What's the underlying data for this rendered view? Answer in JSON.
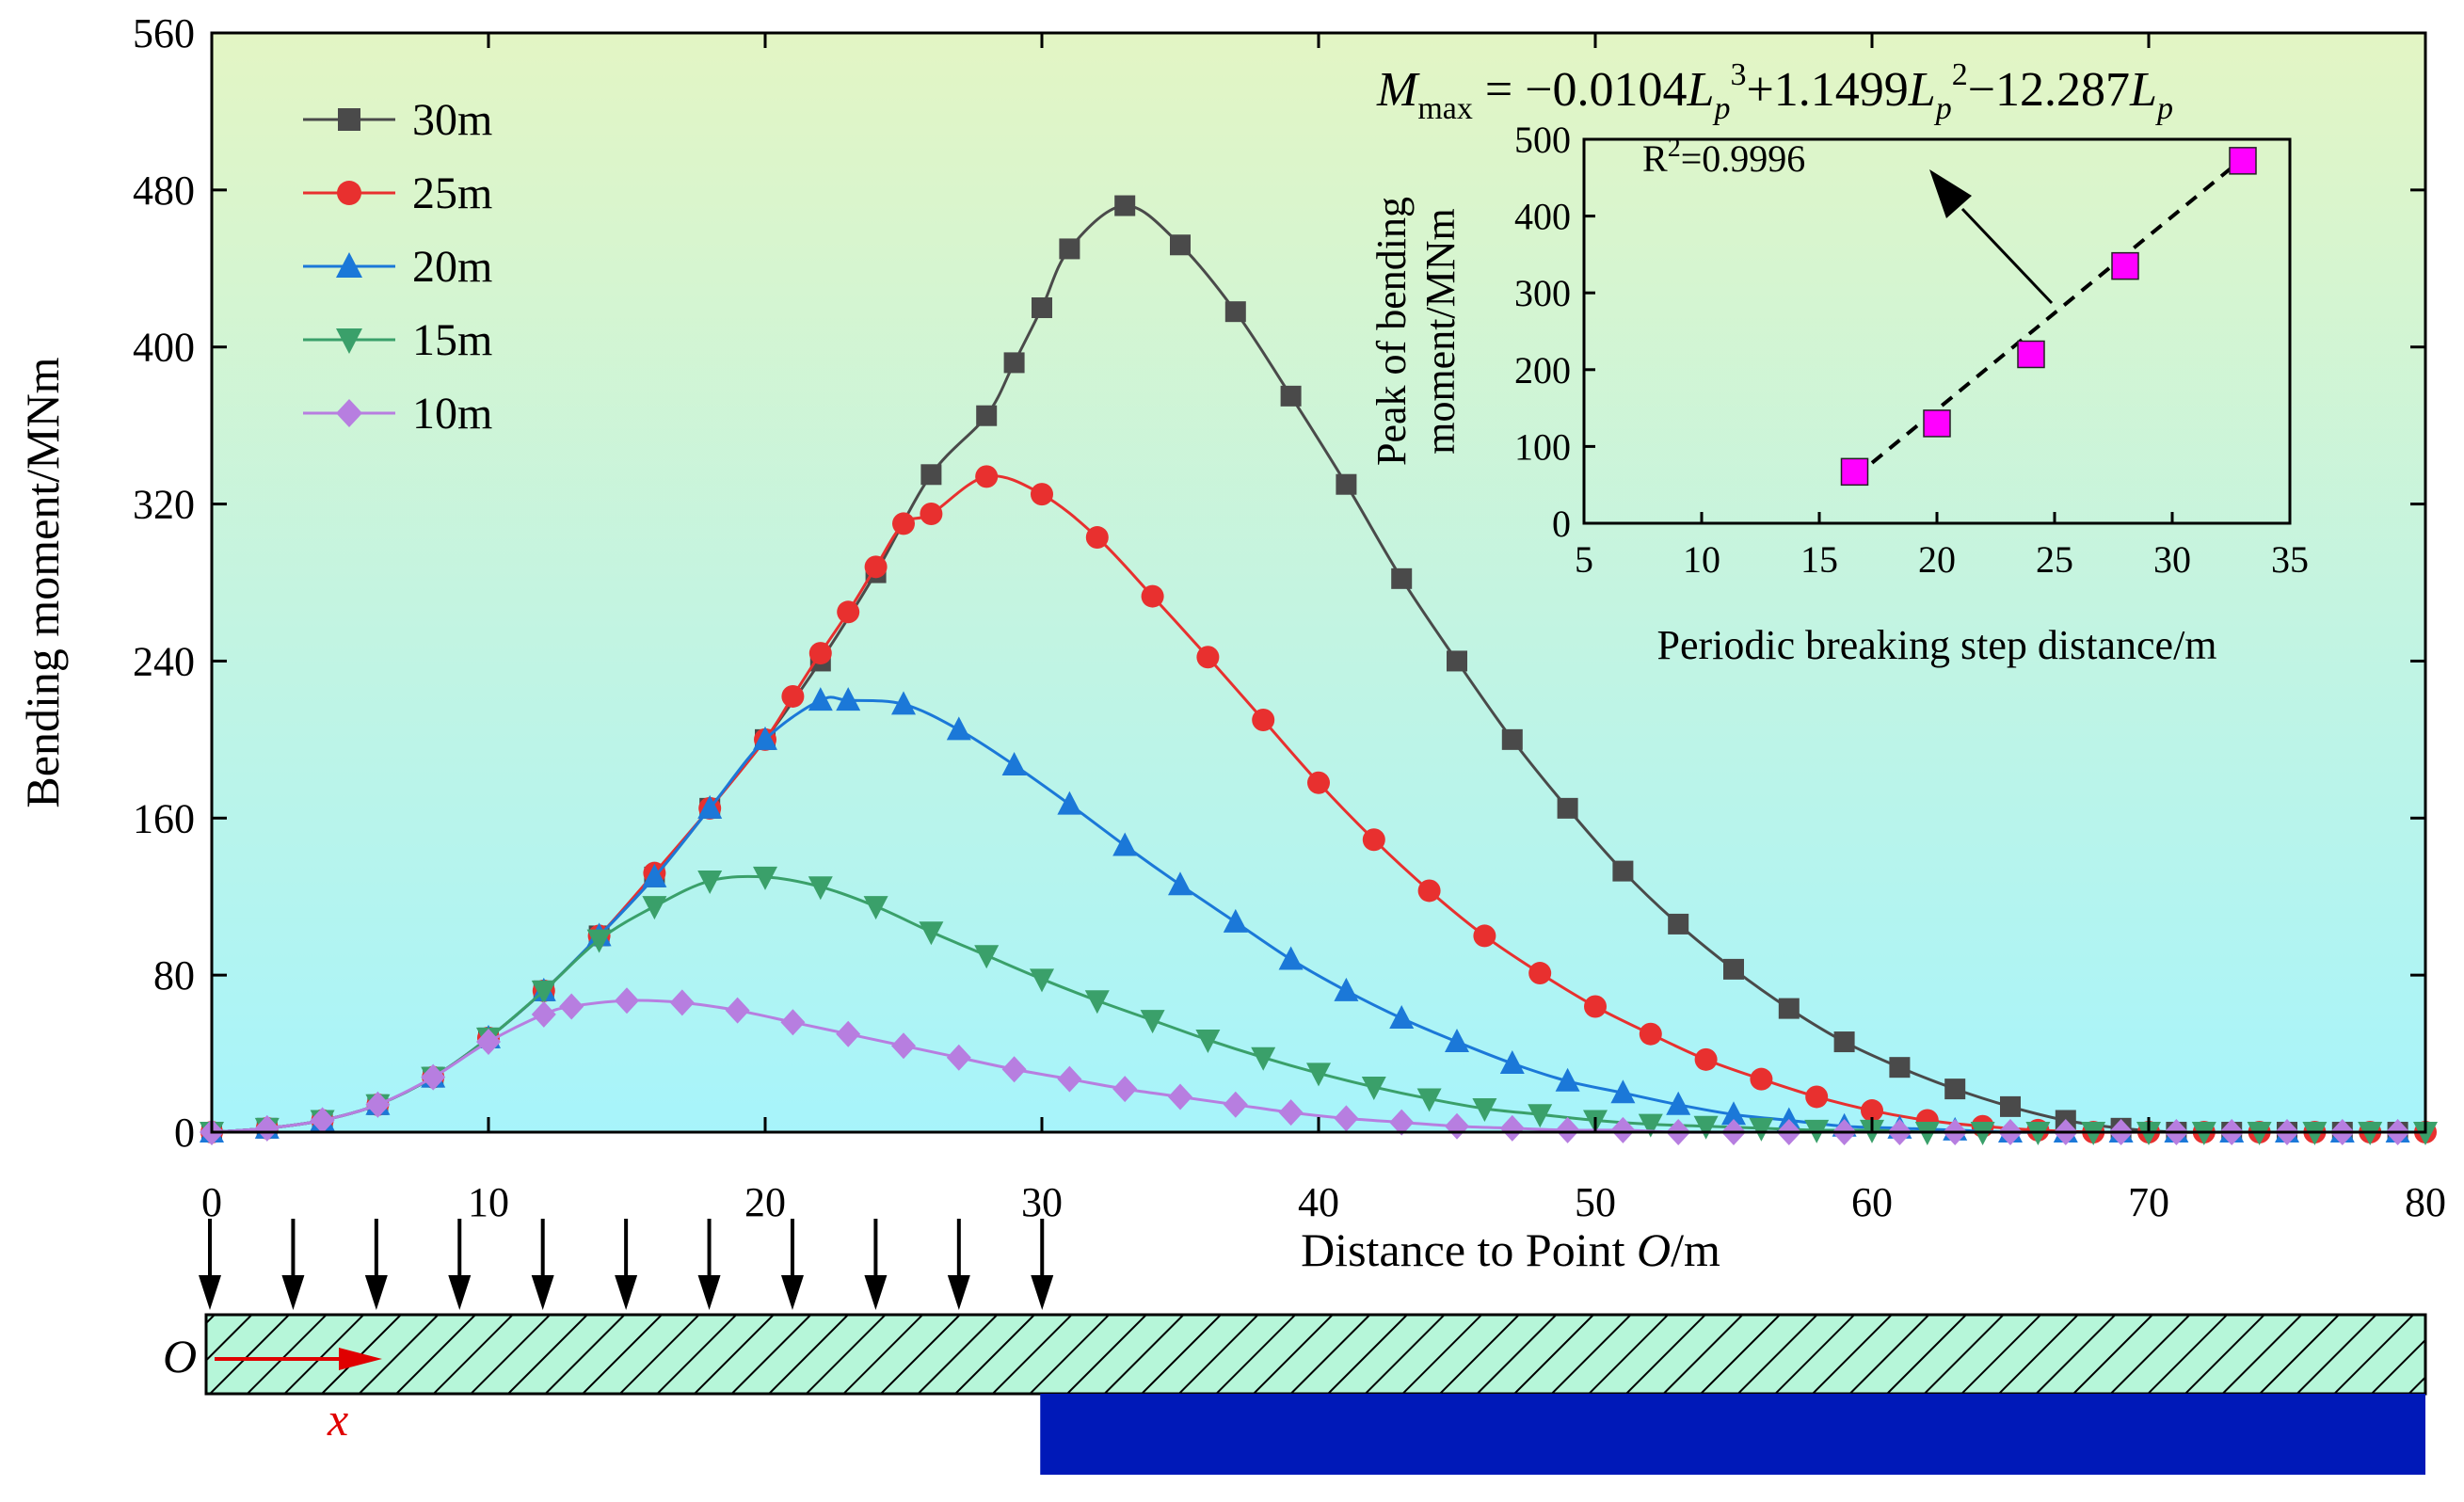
{
  "chart_data": [
    {
      "type": "line",
      "xlabel": "Distance to Point O/m",
      "xlabel_parts": [
        "Distance to Point ",
        "O",
        "/m"
      ],
      "ylabel": "Bending moment/MNm",
      "xlim": [
        0,
        80
      ],
      "ylim": [
        0,
        560
      ],
      "xticks": [
        0,
        10,
        20,
        30,
        40,
        50,
        60,
        70,
        80
      ],
      "yticks": [
        0,
        80,
        160,
        240,
        320,
        400,
        480,
        560
      ],
      "background_gradient": [
        "#e3f5c4",
        "#a7f4fb"
      ],
      "legend_position": "top-left",
      "series": [
        {
          "name": "30m",
          "marker": "square",
          "color": "#4a4a4a",
          "x": [
            0,
            2,
            4,
            6,
            8,
            10,
            12,
            14,
            16,
            18,
            20,
            22,
            24,
            26,
            28,
            29,
            30,
            31,
            33,
            35,
            37,
            39,
            41,
            43,
            45,
            47,
            49,
            51,
            53,
            55,
            57,
            59,
            61,
            63,
            65,
            67,
            69,
            71,
            73,
            75,
            77,
            79
          ],
          "y": [
            0,
            2,
            6,
            14,
            28,
            48,
            72,
            100,
            130,
            165,
            200,
            240,
            285,
            335,
            365,
            392,
            420,
            450,
            472,
            452,
            418,
            375,
            330,
            282,
            240,
            200,
            165,
            133,
            106,
            83,
            63,
            46,
            33,
            22,
            13,
            6,
            2,
            0,
            0,
            0,
            0,
            0
          ]
        },
        {
          "name": "25m",
          "marker": "circle",
          "color": "#e8302f",
          "x": [
            0,
            2,
            4,
            6,
            8,
            10,
            12,
            14,
            16,
            18,
            20,
            21,
            22,
            23,
            24,
            25,
            26,
            28,
            30,
            32,
            34,
            36,
            38,
            40,
            42,
            44,
            46,
            48,
            50,
            52,
            54,
            56,
            58,
            60,
            62,
            64,
            66,
            68,
            70,
            72,
            74,
            76,
            78,
            80
          ],
          "y": [
            0,
            2,
            6,
            14,
            28,
            48,
            72,
            100,
            132,
            165,
            200,
            222,
            244,
            265,
            288,
            310,
            315,
            334,
            325,
            303,
            273,
            242,
            210,
            178,
            149,
            123,
            100,
            81,
            64,
            50,
            37,
            27,
            18,
            11,
            6,
            3,
            1,
            0,
            0,
            0,
            0,
            0,
            0,
            0
          ],
          "note_x": "dense sampling near peak"
        },
        {
          "name": "20m",
          "marker": "triangle-up",
          "color": "#1b78d8",
          "x": [
            0,
            2,
            4,
            6,
            8,
            10,
            12,
            14,
            16,
            18,
            20,
            22,
            23,
            25,
            27,
            29,
            31,
            33,
            35,
            37,
            39,
            41,
            43,
            45,
            47,
            49,
            51,
            53,
            55,
            57,
            59,
            61,
            63,
            65,
            67,
            69,
            71,
            73,
            75,
            77,
            79
          ],
          "y": [
            0,
            2,
            6,
            14,
            28,
            48,
            72,
            100,
            130,
            165,
            200,
            220,
            220,
            218,
            205,
            187,
            167,
            146,
            126,
            107,
            88,
            72,
            58,
            46,
            35,
            26,
            20,
            14,
            9,
            6,
            3,
            2,
            1,
            0,
            0,
            0,
            0,
            0,
            0,
            0,
            0
          ]
        },
        {
          "name": "15m",
          "marker": "triangle-down",
          "color": "#3aa06a",
          "x": [
            0,
            2,
            4,
            6,
            8,
            10,
            12,
            14,
            16,
            18,
            20,
            22,
            24,
            26,
            28,
            30,
            32,
            34,
            36,
            38,
            40,
            42,
            44,
            46,
            48,
            50,
            52,
            54,
            56,
            58,
            60,
            62,
            64,
            66,
            68,
            70,
            72,
            74,
            76,
            78,
            80
          ],
          "y": [
            0,
            2,
            6,
            14,
            28,
            48,
            72,
            98,
            115,
            128,
            130,
            125,
            115,
            102,
            90,
            78,
            67,
            57,
            47,
            38,
            30,
            23,
            17,
            12,
            9,
            6,
            4,
            3,
            2,
            1,
            1,
            0,
            0,
            0,
            0,
            0,
            0,
            0,
            0,
            0,
            0
          ]
        },
        {
          "name": "10m",
          "marker": "diamond",
          "color": "#b77ee0",
          "x": [
            0,
            2,
            4,
            6,
            8,
            10,
            12,
            13,
            15,
            17,
            19,
            21,
            23,
            25,
            27,
            29,
            31,
            33,
            35,
            37,
            39,
            41,
            43,
            45,
            47,
            49,
            51,
            53,
            55,
            57,
            59,
            61,
            63,
            65,
            67,
            69,
            71,
            73,
            75,
            77,
            79
          ],
          "y": [
            0,
            2,
            6,
            14,
            28,
            46,
            60,
            64,
            67,
            66,
            62,
            56,
            50,
            44,
            38,
            32,
            27,
            22,
            18,
            14,
            10,
            7,
            5,
            3,
            2,
            1,
            1,
            0,
            0,
            0,
            0,
            0,
            0,
            0,
            0,
            0,
            0,
            0,
            0,
            0,
            0
          ]
        }
      ]
    },
    {
      "type": "scatter",
      "xlabel": "Periodic breaking step distance/m",
      "ylabel": "Peak of bending moment/MNm",
      "ylabel_lines": [
        "Peak of bending",
        "moment/MNm"
      ],
      "xlim": [
        5,
        35
      ],
      "ylim": [
        0,
        500
      ],
      "xticks": [
        5,
        10,
        15,
        20,
        25,
        30,
        35
      ],
      "yticks": [
        0,
        100,
        200,
        300,
        400,
        500
      ],
      "points": {
        "x": [
          16.5,
          20,
          24,
          28,
          33
        ],
        "y": [
          67,
          130,
          220,
          335,
          472
        ],
        "color": "#ff00ff",
        "marker": "square"
      },
      "fit_line": {
        "style": "dashed",
        "x": [
          16.5,
          33
        ],
        "y": [
          60,
          475
        ]
      },
      "equation": {
        "M": "M",
        "max": "max",
        "p": "p",
        "cube": "3",
        "sq": "2",
        "eq": " = ",
        "t1": "−0.0104",
        "t2": "+1.1499",
        "t3": "−12.287",
        "L": "L"
      },
      "r2": {
        "R": "R",
        "sup": "2",
        "value": "=0.9996"
      }
    }
  ],
  "schematic": {
    "origin_label": "O",
    "axis_label": "x",
    "arrow_count": 11,
    "load_positions_m": [
      0,
      3,
      6,
      9,
      12,
      15,
      18,
      21,
      24,
      27,
      30
    ],
    "beam_color": "#b6f6d9",
    "support_color": "#0019b8",
    "support_start_m": 30,
    "support_end_m": 80,
    "axis_arrow_color": "#e00000"
  }
}
